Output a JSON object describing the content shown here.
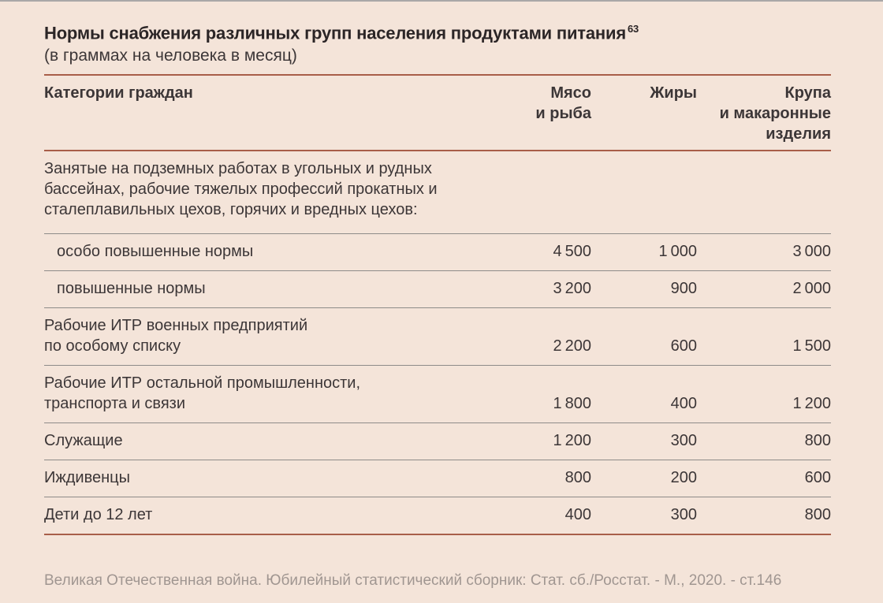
{
  "colors": {
    "background": "#f4e4d9",
    "top_edge": "#a9a7a8",
    "accent_rule": "#a85e49",
    "row_rule": "#8e8b89",
    "title_text": "#2b2526",
    "body_text": "#3c3637",
    "source_text": "#a09691"
  },
  "header": {
    "title": "Нормы снабжения различных групп населения продуктами питания",
    "footnote_ref": "63",
    "subtitle": "(в граммах на человека в месяц)"
  },
  "table": {
    "columns": [
      {
        "label": "Категории граждан"
      },
      {
        "label": "Мясо\nи рыба"
      },
      {
        "label": "Жиры"
      },
      {
        "label": "Крупа\nи макаронные\nизделия"
      }
    ],
    "rows": [
      {
        "label": "Занятые на подземных работах в угольных и рудных бассейнах, рабочие тяжелых профессий прокатных и сталеплавильных цехов, горячих и вредных цехов:",
        "group": true,
        "indent": false,
        "values": null
      },
      {
        "label": "особо повышенные нормы",
        "group": false,
        "indent": true,
        "values": [
          "4 500",
          "1 000",
          "3 000"
        ]
      },
      {
        "label": "повышенные нормы",
        "group": false,
        "indent": true,
        "values": [
          "3 200",
          "900",
          "2 000"
        ]
      },
      {
        "label": "Рабочие ИТР военных предприятий\nпо особому списку",
        "group": false,
        "indent": false,
        "values": [
          "2 200",
          "600",
          "1 500"
        ]
      },
      {
        "label": "Рабочие ИТР остальной промышленности,\nтранспорта и связи",
        "group": false,
        "indent": false,
        "values": [
          "1 800",
          "400",
          "1 200"
        ]
      },
      {
        "label": "Служащие",
        "group": false,
        "indent": false,
        "values": [
          "1 200",
          "300",
          "800"
        ]
      },
      {
        "label": "Иждивенцы",
        "group": false,
        "indent": false,
        "values": [
          "800",
          "200",
          "600"
        ]
      },
      {
        "label": "Дети до 12 лет",
        "group": false,
        "indent": false,
        "values": [
          "400",
          "300",
          "800"
        ]
      }
    ]
  },
  "footer": {
    "source": "Великая Отечественная война. Юбилейный статистический сборник: Стат. сб./Росстат. - М., 2020. - ст.146"
  }
}
